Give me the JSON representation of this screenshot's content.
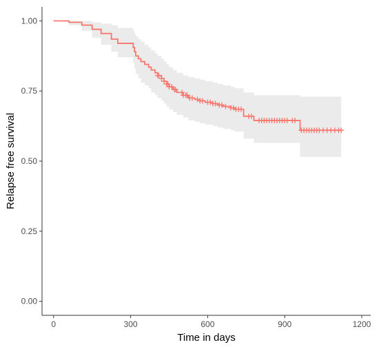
{
  "chart_data": {
    "type": "line",
    "subtype": "kaplan-meier",
    "xlabel": "Time in days",
    "ylabel": "Relapse free survival",
    "xlim": [
      -45,
      1235
    ],
    "ylim": [
      -0.05,
      1.05
    ],
    "xticks": [
      0,
      300,
      600,
      900,
      1200
    ],
    "yticks": [
      0.0,
      0.25,
      0.5,
      0.75,
      1.0
    ],
    "xtick_labels": [
      "0",
      "300",
      "600",
      "900",
      "1200"
    ],
    "ytick_labels": [
      "0.00",
      "0.25",
      "0.50",
      "0.75",
      "1.00"
    ],
    "grid": false,
    "legend": "none",
    "colors": {
      "line": "#f8766d",
      "ci_band": "#ebebeb",
      "axis": "#333333"
    },
    "series": [
      {
        "step_x": [
          0,
          60,
          110,
          150,
          185,
          225,
          250,
          310,
          315,
          320,
          330,
          340,
          355,
          370,
          380,
          395,
          405,
          420,
          430,
          440,
          450,
          465,
          480,
          505,
          525,
          550,
          570,
          590,
          620,
          640,
          660,
          690,
          705,
          740,
          780,
          960,
          1120
        ],
        "step_y": [
          1.0,
          0.995,
          0.985,
          0.97,
          0.955,
          0.935,
          0.92,
          0.905,
          0.89,
          0.875,
          0.865,
          0.855,
          0.845,
          0.835,
          0.825,
          0.815,
          0.805,
          0.795,
          0.785,
          0.775,
          0.765,
          0.755,
          0.745,
          0.735,
          0.725,
          0.72,
          0.715,
          0.71,
          0.705,
          0.7,
          0.695,
          0.69,
          0.685,
          0.66,
          0.645,
          0.61,
          0.61
        ],
        "ci_upper": [
          1.0,
          1.0,
          1.0,
          0.995,
          0.99,
          0.985,
          0.975,
          0.965,
          0.955,
          0.945,
          0.935,
          0.925,
          0.915,
          0.905,
          0.895,
          0.885,
          0.875,
          0.865,
          0.855,
          0.845,
          0.835,
          0.825,
          0.815,
          0.805,
          0.8,
          0.795,
          0.79,
          0.785,
          0.78,
          0.775,
          0.77,
          0.765,
          0.76,
          0.745,
          0.735,
          0.73,
          0.73
        ],
        "ci_lower": [
          1.0,
          0.985,
          0.965,
          0.94,
          0.915,
          0.89,
          0.87,
          0.85,
          0.83,
          0.81,
          0.795,
          0.78,
          0.77,
          0.76,
          0.745,
          0.735,
          0.725,
          0.715,
          0.705,
          0.695,
          0.685,
          0.675,
          0.665,
          0.655,
          0.645,
          0.64,
          0.635,
          0.63,
          0.625,
          0.62,
          0.615,
          0.61,
          0.605,
          0.58,
          0.565,
          0.515,
          0.515
        ],
        "censor_x": [
          405,
          410,
          420,
          430,
          440,
          445,
          450,
          460,
          470,
          475,
          500,
          505,
          515,
          520,
          530,
          540,
          560,
          570,
          580,
          600,
          610,
          620,
          630,
          645,
          655,
          670,
          690,
          700,
          710,
          720,
          730,
          760,
          770,
          800,
          810,
          820,
          830,
          840,
          850,
          860,
          870,
          880,
          890,
          900,
          910,
          930,
          940,
          965,
          975,
          985,
          995,
          1005,
          1015,
          1025,
          1035,
          1050,
          1065,
          1080,
          1095,
          1110,
          1120
        ]
      }
    ]
  }
}
